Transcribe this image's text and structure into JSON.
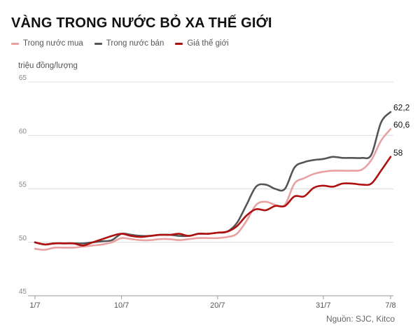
{
  "title": "VÀNG TRONG NƯỚC BỎ XA THẾ GIỚI",
  "unit_label": "triệu đồng/lượng",
  "source": "Nguồn: SJC, Kitco",
  "chart_data": {
    "type": "line",
    "title": "VÀNG TRONG NƯỚC BỎ XA THẾ GIỚI",
    "ylabel": "triệu đồng/lượng",
    "xlabel": "",
    "ylim": [
      45,
      65
    ],
    "yticks": [
      "45",
      "50",
      "55",
      "60",
      "65"
    ],
    "xticks": [
      "1/7",
      "10/7",
      "20/7",
      "31/7",
      "7/8"
    ],
    "xtick_index": [
      0,
      9,
      19,
      30,
      37
    ],
    "legend_position": "top-left",
    "grid": true,
    "x": [
      "1/7",
      "2/7",
      "3/7",
      "4/7",
      "5/7",
      "6/7",
      "7/7",
      "8/7",
      "9/7",
      "10/7",
      "11/7",
      "12/7",
      "13/7",
      "14/7",
      "15/7",
      "16/7",
      "17/7",
      "18/7",
      "19/7",
      "20/7",
      "21/7",
      "22/7",
      "23/7",
      "24/7",
      "25/7",
      "26/7",
      "27/7",
      "28/7",
      "29/7",
      "30/7",
      "31/7",
      "1/8",
      "2/8",
      "3/8",
      "4/8",
      "5/8",
      "6/8",
      "7/8"
    ],
    "series": [
      {
        "name": "Trong nước mua",
        "color": "#e8a0a0",
        "end_label": "60,6",
        "values": [
          49.4,
          49.3,
          49.5,
          49.5,
          49.5,
          49.6,
          49.7,
          49.8,
          50.0,
          50.4,
          50.3,
          50.2,
          50.2,
          50.3,
          50.3,
          50.2,
          50.3,
          50.4,
          50.4,
          50.4,
          50.5,
          50.8,
          52.0,
          53.5,
          53.8,
          53.5,
          53.5,
          55.5,
          56.0,
          56.4,
          56.6,
          56.7,
          56.7,
          56.7,
          56.8,
          57.7,
          59.5,
          60.6
        ]
      },
      {
        "name": "Trong nước bán",
        "color": "#555555",
        "end_label": "62,2",
        "values": [
          50.0,
          49.8,
          49.9,
          49.9,
          49.9,
          49.9,
          50.0,
          50.1,
          50.2,
          50.8,
          50.7,
          50.6,
          50.6,
          50.7,
          50.7,
          50.6,
          50.6,
          50.8,
          50.8,
          50.9,
          51.0,
          51.8,
          53.5,
          55.2,
          55.4,
          55.0,
          55.0,
          57.0,
          57.5,
          57.7,
          57.8,
          58.0,
          57.9,
          57.9,
          57.9,
          58.2,
          61.2,
          62.2
        ]
      },
      {
        "name": "Giá thế giới",
        "color": "#b01010",
        "end_label": "58",
        "values": [
          50.0,
          49.8,
          49.9,
          49.9,
          49.9,
          49.7,
          50.0,
          50.3,
          50.6,
          50.8,
          50.6,
          50.5,
          50.6,
          50.7,
          50.7,
          50.8,
          50.6,
          50.8,
          50.8,
          50.9,
          51.0,
          51.5,
          52.5,
          53.1,
          53.0,
          53.4,
          53.4,
          54.3,
          54.3,
          55.1,
          55.3,
          55.2,
          55.5,
          55.5,
          55.4,
          55.5,
          56.7,
          58.0
        ]
      }
    ]
  }
}
